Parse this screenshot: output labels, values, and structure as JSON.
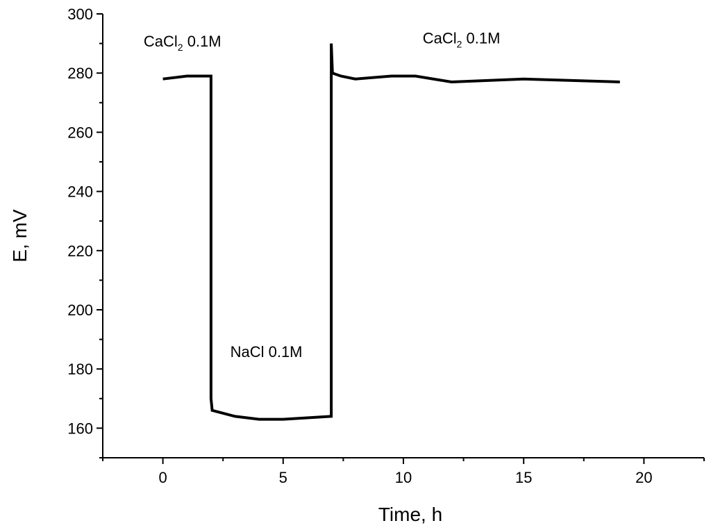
{
  "chart_data": {
    "type": "line",
    "xlabel": "Time, h",
    "ylabel": "E, mV",
    "xlim": [
      -2.5,
      22.5
    ],
    "ylim": [
      150,
      300
    ],
    "xticks": [
      0,
      5,
      10,
      15,
      20
    ],
    "yticks": [
      160,
      180,
      200,
      220,
      240,
      260,
      280,
      300
    ],
    "grid": false,
    "series": [
      {
        "x": [
          0,
          1,
          2,
          2.0,
          2.05,
          3,
          4,
          5,
          6,
          7,
          7.0,
          7.05,
          7.4,
          8,
          9.5,
          10.5,
          12,
          15,
          19
        ],
        "y": [
          278,
          279,
          279,
          170,
          166,
          164,
          163,
          163,
          163.5,
          164,
          290,
          280,
          279,
          278,
          279,
          279,
          277,
          278,
          277
        ],
        "color": "#000000"
      }
    ],
    "annotations": [
      {
        "text": "CaCl",
        "sub": "2",
        "rest": " 0.1M",
        "x": -0.8,
        "y": 289
      },
      {
        "text": "NaCl",
        "sub": "",
        "rest": " 0.1M",
        "x": 2.8,
        "y": 184
      },
      {
        "text": "CaCl",
        "sub": "2",
        "rest": " 0.1M",
        "x": 10.8,
        "y": 290
      }
    ]
  }
}
